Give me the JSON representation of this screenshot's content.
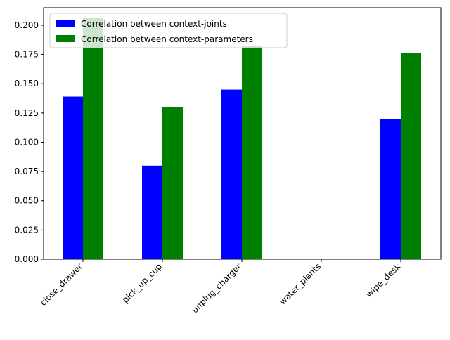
{
  "chart_data": {
    "type": "bar",
    "title": "",
    "xlabel": "",
    "ylabel": "",
    "categories": [
      "close_drawer",
      "pick_up_cup",
      "unplug_charger",
      "water_plants",
      "wipe_desk"
    ],
    "series": [
      {
        "name": "Correlation between context-joints",
        "color": "#0000ff",
        "values": [
          0.139,
          0.08,
          0.145,
          0.0,
          0.12
        ]
      },
      {
        "name": "Correlation between context-parameters",
        "color": "#008000",
        "values": [
          0.206,
          0.13,
          0.182,
          0.0,
          0.176
        ]
      }
    ],
    "ylim": [
      0,
      0.215
    ],
    "yticks": [
      "0.000",
      "0.025",
      "0.050",
      "0.075",
      "0.100",
      "0.125",
      "0.150",
      "0.175",
      "0.200"
    ],
    "grid": false,
    "legend_position": "top-left"
  }
}
